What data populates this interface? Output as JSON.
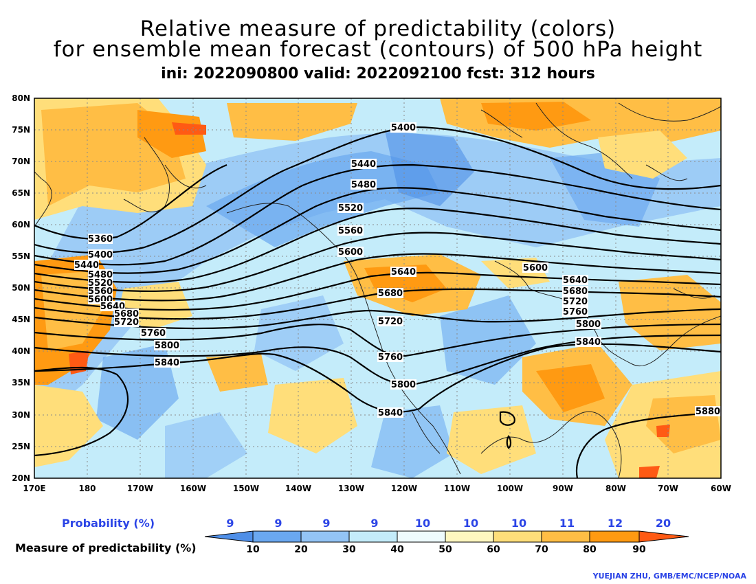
{
  "title": {
    "line1": "Relative measure of predictability (colors)",
    "line2": "for ensemble mean forecast (contours) of 500 hPa height",
    "line3": "ini: 2022090800 valid: 2022092100 fcst: 312 hours"
  },
  "map": {
    "lat_labels": [
      "80N",
      "75N",
      "70N",
      "65N",
      "60N",
      "55N",
      "50N",
      "45N",
      "40N",
      "35N",
      "30N",
      "25N",
      "20N"
    ],
    "lon_labels": [
      "170E",
      "180",
      "170W",
      "160W",
      "150W",
      "140W",
      "130W",
      "120W",
      "110W",
      "100W",
      "90W",
      "80W",
      "70W",
      "60W"
    ],
    "contour_labels": [
      "5360",
      "5400",
      "5440",
      "5480",
      "5520",
      "5560",
      "5600",
      "5640",
      "5680",
      "5720",
      "5760",
      "5800",
      "5840",
      "5880"
    ]
  },
  "legend": {
    "probability_label": "Probability (%)",
    "measure_label": "Measure of predictability (%)",
    "probabilities": [
      "9",
      "9",
      "9",
      "9",
      "10",
      "10",
      "10",
      "11",
      "12",
      "20"
    ],
    "ticks": [
      "10",
      "20",
      "30",
      "40",
      "50",
      "60",
      "70",
      "80",
      "90"
    ],
    "colors": [
      "#4f8fe8",
      "#6aa8f0",
      "#93c4f5",
      "#c4ecfa",
      "#eefbfd",
      "#fff7c0",
      "#ffde7a",
      "#ffbe45",
      "#ff9a12",
      "#ff5a14"
    ]
  },
  "credit": "YUEJIAN ZHU, GMB/EMC/NCEP/NOAA"
}
